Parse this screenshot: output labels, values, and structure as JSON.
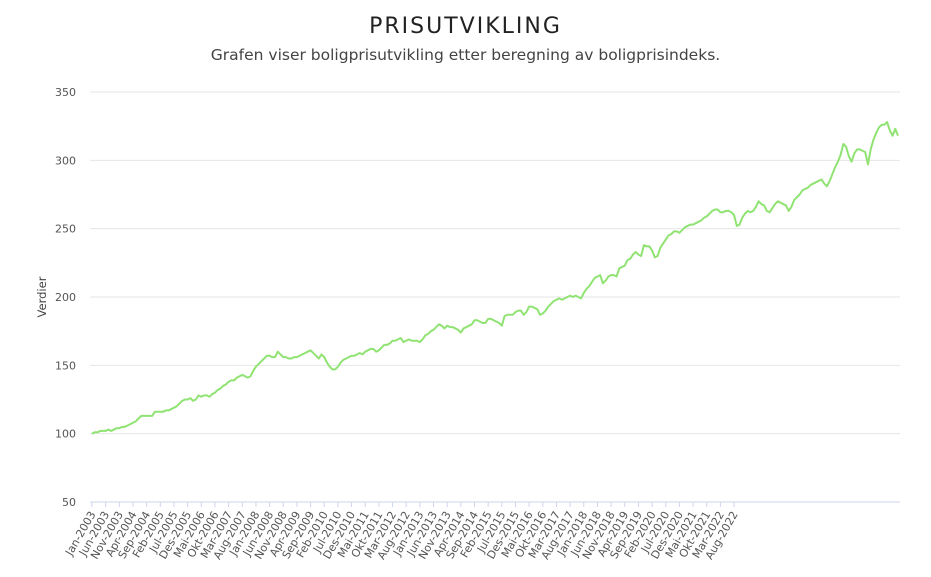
{
  "chart_data": {
    "type": "line",
    "title": "PRISUTVIKLING",
    "subtitle": "Grafen viser boligprisutvikling etter beregning av boligprisindeks.",
    "ylabel": "Verdier",
    "xlabel": "",
    "ylim": [
      50,
      350
    ],
    "yticks": [
      50,
      100,
      150,
      200,
      250,
      300,
      350
    ],
    "grid": true,
    "line_color": "#90e373",
    "xtick_labels": [
      "Jan-2003",
      "Jun-2003",
      "Nov-2003",
      "Apr-2004",
      "Sep-2004",
      "Feb-2005",
      "Jul-2005",
      "Des-2005",
      "Mai-2006",
      "Okt-2006",
      "Mar-2007",
      "Aug-2007",
      "Jan-2008",
      "Jun-2008",
      "Nov-2008",
      "Apr-2009",
      "Sep-2009",
      "Feb-2010",
      "Jul-2010",
      "Des-2010",
      "Mai-2011",
      "Okt-2011",
      "Mar-2012",
      "Aug-2012",
      "Jan-2013",
      "Jun-2013",
      "Nov-2013",
      "Apr-2014",
      "Sep-2014",
      "Feb-2015",
      "Jul-2015",
      "Des-2015",
      "Mai-2016",
      "Okt-2016",
      "Mar-2017",
      "Aug-2017",
      "Jan-2018",
      "Jun-2018",
      "Nov-2018",
      "Apr-2019",
      "Sep-2019",
      "Feb-2020",
      "Jul-2020",
      "Des-2020",
      "Mai-2021",
      "Okt-2021",
      "Mar-2022",
      "Aug-2022"
    ],
    "series": [
      {
        "name": "",
        "values": [
          100,
          101,
          101,
          102,
          102,
          102,
          103,
          102,
          103,
          104,
          104,
          105,
          105,
          106,
          107,
          108,
          109,
          111,
          113,
          113,
          113,
          113,
          113,
          116,
          116,
          116,
          116,
          117,
          117,
          118,
          119,
          120,
          122,
          124,
          125,
          125,
          126,
          124,
          125,
          128,
          127,
          128,
          128,
          127,
          129,
          130,
          132,
          133,
          135,
          136,
          138,
          139,
          139,
          141,
          142,
          143,
          142,
          141,
          142,
          146,
          149,
          151,
          153,
          155,
          157,
          157,
          156,
          156,
          160,
          158,
          156,
          156,
          155,
          155,
          156,
          156,
          157,
          158,
          159,
          160,
          161,
          159,
          157,
          155,
          158,
          156,
          152,
          149,
          147,
          147,
          149,
          152,
          154,
          155,
          156,
          157,
          157,
          158,
          159,
          158,
          160,
          161,
          162,
          162,
          160,
          161,
          163,
          165,
          165,
          166,
          168,
          168,
          169,
          170,
          167,
          168,
          169,
          168,
          168,
          168,
          167,
          169,
          172,
          173,
          175,
          176,
          178,
          180,
          179,
          177,
          179,
          178,
          178,
          177,
          176,
          174,
          177,
          178,
          179,
          180,
          183,
          183,
          182,
          181,
          181,
          184,
          184,
          183,
          182,
          181,
          179,
          186,
          187,
          187,
          187,
          189,
          190,
          190,
          187,
          189,
          193,
          193,
          192,
          191,
          187,
          188,
          190,
          193,
          195,
          197,
          198,
          199,
          198,
          199,
          200,
          201,
          200,
          201,
          200,
          199,
          203,
          206,
          208,
          211,
          214,
          215,
          216,
          210,
          212,
          215,
          216,
          216,
          215,
          221,
          222,
          223,
          227,
          228,
          231,
          233,
          231,
          230,
          238,
          237,
          237,
          234,
          229,
          230,
          236,
          239,
          242,
          245,
          246,
          248,
          248,
          247,
          249,
          251,
          252,
          253,
          253,
          254,
          255,
          256,
          258,
          259,
          261,
          263,
          264,
          264,
          262,
          262,
          263,
          263,
          262,
          260,
          252,
          253,
          258,
          261,
          263,
          262,
          263,
          266,
          270,
          268,
          267,
          263,
          262,
          265,
          268,
          270,
          269,
          268,
          267,
          263,
          266,
          271,
          273,
          275,
          278,
          279,
          280,
          282,
          283,
          284,
          285,
          286,
          283,
          281,
          285,
          290,
          295,
          299,
          304,
          312,
          310,
          303,
          299,
          305,
          308,
          308,
          307,
          306,
          297,
          308,
          315,
          320,
          324,
          326,
          326,
          328,
          322,
          318,
          323,
          318
        ]
      }
    ]
  }
}
